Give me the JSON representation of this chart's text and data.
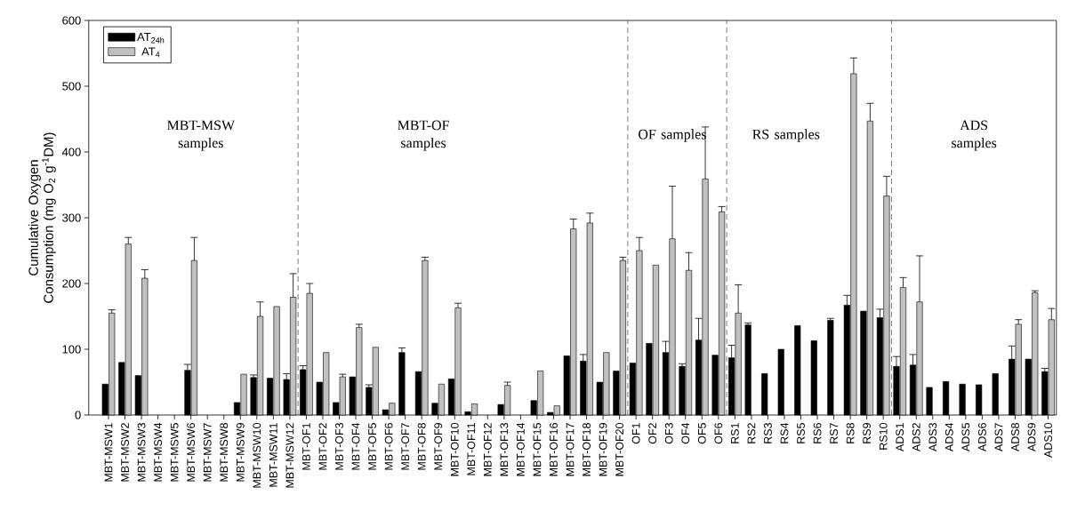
{
  "chart_data": {
    "type": "bar",
    "ylabel": "Cumulative Oxygen Consumption (mg O$_{2}$ g$^{-1}$DM)",
    "categories": [
      "MBT-MSW1",
      "MBT-MSW2",
      "MBT-MSW3",
      "MBT-MSW4",
      "MBT-MSW5",
      "MBT-MSW6",
      "MBT-MSW7",
      "MBT-MSW8",
      "MBT-MSW9",
      "MBT-MSW10",
      "MBT-MSW11",
      "MBT-MSW12",
      "MBT-OF1",
      "MBT-OF2",
      "MBT-OF3",
      "MBT-OF4",
      "MBT-OF5",
      "MBT-OF6",
      "MBT-OF7",
      "MBT-OF8",
      "MBT-OF9",
      "MBT-OF10",
      "MBT-OF11",
      "MBT-OF12",
      "MBT-OF13",
      "MBT-OF14",
      "MBT-OF15",
      "MBT-OF16",
      "MBT-OF17",
      "MBT-OF18",
      "MBT-OF19",
      "MBT-OF20",
      "OF1",
      "OF2",
      "OF3",
      "OF4",
      "OF5",
      "OF6",
      "RS1",
      "RS2",
      "RS3",
      "RS4",
      "RS5",
      "RS6",
      "RS7",
      "RS8",
      "RS9",
      "RS10",
      "ADS1",
      "ADS2",
      "ADS3",
      "ADS4",
      "ADS5",
      "ADS6",
      "ADS7",
      "ADS8",
      "ADS9",
      "ADS10"
    ],
    "series": [
      {
        "name": "AT$_{24h}$",
        "color": "#000000",
        "values": [
          47,
          80,
          60,
          null,
          null,
          68,
          null,
          null,
          19,
          57,
          56,
          54,
          69,
          50,
          19,
          58,
          42,
          8,
          95,
          66,
          18,
          55,
          5,
          null,
          16,
          null,
          22,
          4,
          90,
          82,
          50,
          67,
          79,
          109,
          95,
          74,
          114,
          91,
          87,
          137,
          63,
          100,
          136,
          113,
          144,
          167,
          158,
          148,
          74,
          76,
          42,
          51,
          47,
          46,
          63,
          85,
          85,
          66
        ],
        "errors": [
          null,
          null,
          null,
          null,
          null,
          9,
          null,
          null,
          null,
          4,
          null,
          9,
          6,
          null,
          null,
          null,
          4,
          null,
          7,
          null,
          null,
          null,
          null,
          null,
          null,
          null,
          null,
          null,
          null,
          10,
          null,
          null,
          null,
          null,
          17,
          4,
          33,
          null,
          19,
          3,
          null,
          null,
          null,
          null,
          3,
          15,
          null,
          13,
          15,
          16,
          null,
          null,
          null,
          null,
          null,
          20,
          null,
          5
        ]
      },
      {
        "name": "AT$_{4}$",
        "color": "#c0c0c0",
        "values": [
          155,
          260,
          208,
          null,
          null,
          235,
          null,
          null,
          62,
          150,
          165,
          179,
          185,
          95,
          58,
          133,
          103,
          18,
          null,
          235,
          47,
          163,
          17,
          null,
          45,
          null,
          67,
          14,
          283,
          292,
          95,
          235,
          250,
          228,
          268,
          220,
          359,
          309,
          155,
          null,
          null,
          null,
          null,
          null,
          null,
          519,
          447,
          333,
          194,
          172,
          null,
          null,
          null,
          null,
          null,
          138,
          186,
          145
        ],
        "errors": [
          5,
          10,
          13,
          null,
          null,
          35,
          null,
          null,
          null,
          22,
          null,
          36,
          15,
          null,
          4,
          5,
          null,
          null,
          null,
          5,
          null,
          7,
          null,
          null,
          5,
          null,
          null,
          null,
          15,
          15,
          null,
          5,
          20,
          null,
          80,
          27,
          79,
          8,
          43,
          null,
          null,
          null,
          null,
          null,
          null,
          24,
          27,
          30,
          15,
          70,
          null,
          null,
          null,
          null,
          null,
          7,
          3,
          17
        ]
      }
    ],
    "ylim": [
      0,
      600
    ],
    "yticks": [
      0,
      100,
      200,
      300,
      400,
      500,
      600
    ],
    "legend": "top left",
    "annotations": [
      "MBT-MSW samples",
      "MBT-OF samples",
      "OF samples",
      "RS samples",
      "ADS samples"
    ]
  }
}
